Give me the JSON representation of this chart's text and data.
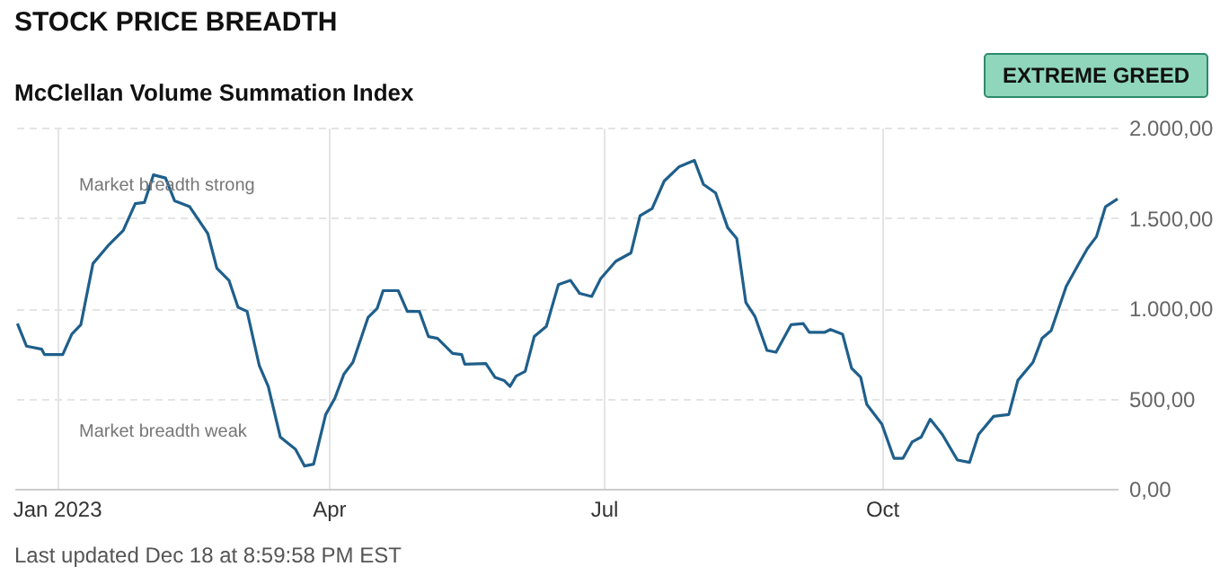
{
  "chart_data": {
    "type": "line",
    "title": "STOCK PRICE BREADTH",
    "subtitle": "McClellan Volume Summation Index",
    "annotations": [
      "EXTREME GREED",
      "Market breadth strong",
      "Market breadth weak",
      "Last updated Dec 18 at 8:59:58 PM EST"
    ],
    "x": [
      "2022-12-19",
      "2022-12-22",
      "2022-12-27",
      "2022-12-28",
      "2023-01-03",
      "2023-01-06",
      "2023-01-09",
      "2023-01-13",
      "2023-01-18",
      "2023-01-23",
      "2023-01-27",
      "2023-01-30",
      "2023-02-02",
      "2023-02-06",
      "2023-02-09",
      "2023-02-14",
      "2023-02-20",
      "2023-02-23",
      "2023-02-27",
      "2023-03-02",
      "2023-03-05",
      "2023-03-09",
      "2023-03-12",
      "2023-03-16",
      "2023-03-21",
      "2023-03-24",
      "2023-03-27",
      "2023-03-31",
      "2023-04-03",
      "2023-04-06",
      "2023-04-09",
      "2023-04-14",
      "2023-04-17",
      "2023-04-19",
      "2023-04-24",
      "2023-04-27",
      "2023-05-01",
      "2023-05-04",
      "2023-05-07",
      "2023-05-12",
      "2023-05-15",
      "2023-05-16",
      "2023-05-23",
      "2023-05-26",
      "2023-05-29",
      "2023-05-31",
      "2023-06-02",
      "2023-06-05",
      "2023-06-08",
      "2023-06-12",
      "2023-06-16",
      "2023-06-20",
      "2023-06-23",
      "2023-06-27",
      "2023-06-30",
      "2023-07-05",
      "2023-07-10",
      "2023-07-13",
      "2023-07-17",
      "2023-07-21",
      "2023-07-26",
      "2023-07-31",
      "2023-08-03",
      "2023-08-07",
      "2023-08-11",
      "2023-08-14",
      "2023-08-17",
      "2023-08-20",
      "2023-08-24",
      "2023-08-27",
      "2023-09-01",
      "2023-09-05",
      "2023-09-07",
      "2023-09-12",
      "2023-09-14",
      "2023-09-18",
      "2023-09-21",
      "2023-09-24",
      "2023-09-26",
      "2023-10-01",
      "2023-10-05",
      "2023-10-08",
      "2023-10-11",
      "2023-10-14",
      "2023-10-17",
      "2023-10-21",
      "2023-10-26",
      "2023-10-30",
      "2023-11-02",
      "2023-11-07",
      "2023-11-12",
      "2023-11-15",
      "2023-11-20",
      "2023-11-23",
      "2023-11-26",
      "2023-12-01",
      "2023-12-05",
      "2023-12-08",
      "2023-12-11",
      "2023-12-14",
      "2023-12-18"
    ],
    "series": [
      {
        "color": "#1f5f8b",
        "values": [
          915,
          790,
          773,
          743,
          743,
          856,
          909,
          1247,
          1346,
          1430,
          1579,
          1585,
          1738,
          1721,
          1595,
          1562,
          1413,
          1221,
          1154,
          1005,
          982,
          684,
          567,
          286,
          219,
          126,
          136,
          411,
          500,
          634,
          700,
          948,
          998,
          1097,
          1097,
          982,
          982,
          843,
          833,
          749,
          743,
          690,
          693,
          617,
          600,
          567,
          624,
          650,
          843,
          899,
          1131,
          1154,
          1082,
          1065,
          1164,
          1260,
          1306,
          1512,
          1552,
          1704,
          1784,
          1818,
          1685,
          1638,
          1446,
          1386,
          1032,
          955,
          766,
          756,
          909,
          915,
          866,
          866,
          882,
          856,
          667,
          617,
          468,
          358,
          169,
          169,
          259,
          286,
          385,
          301,
          159,
          146,
          301,
          401,
          411,
          600,
          700,
          833,
          876,
          1121,
          1241,
          1330,
          1396,
          1562,
          1605
        ]
      }
    ],
    "xlim": [
      "2022-12-18",
      "2023-12-18"
    ],
    "xticks": [
      {
        "value": "2023-01-01",
        "label": "Jan 2023"
      },
      {
        "value": "2023-04-01",
        "label": "Apr"
      },
      {
        "value": "2023-07-01",
        "label": "Jul"
      },
      {
        "value": "2023-10-01",
        "label": "Oct"
      }
    ],
    "ylim": [
      0,
      2000
    ],
    "yticks": [
      {
        "value": 0,
        "label": "0,00"
      },
      {
        "value": 500,
        "label": "500,00"
      },
      {
        "value": 1000,
        "label": "1.000,00"
      },
      {
        "value": 1500,
        "label": "1.500,00"
      },
      {
        "value": 2000,
        "label": "2.000,00"
      }
    ],
    "grid": true,
    "line_style": "solid",
    "marker": "none"
  }
}
